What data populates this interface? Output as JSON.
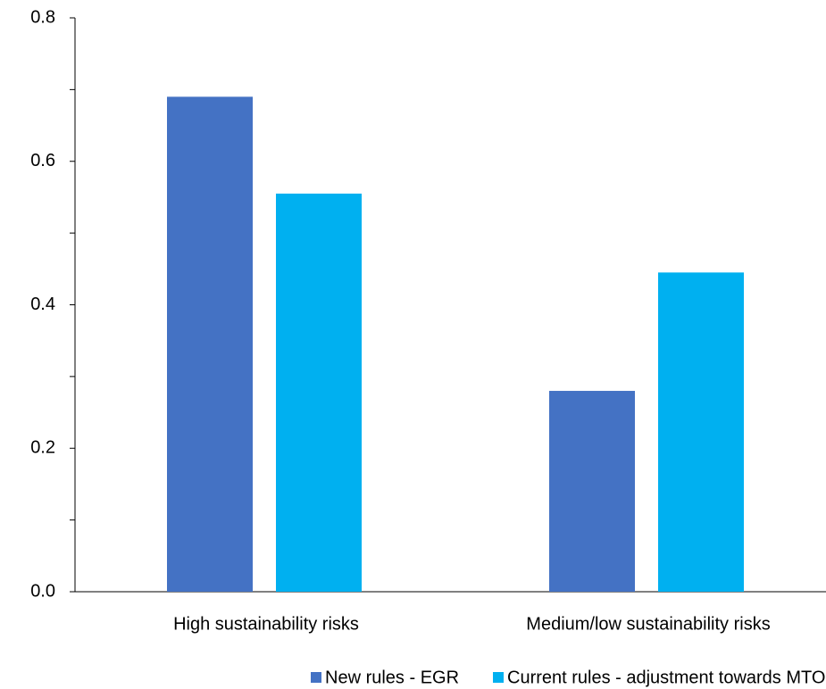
{
  "chart_data": {
    "type": "bar",
    "categories": [
      "High sustainability risks",
      "Medium/low sustainability risks"
    ],
    "series": [
      {
        "name": "New rules - EGR",
        "color": "#4472c4",
        "values": [
          0.69,
          0.28
        ]
      },
      {
        "name": "Current rules - adjustment towards MTO",
        "color": "#00b0f0",
        "values": [
          0.555,
          0.445
        ]
      }
    ],
    "ylim": [
      0,
      0.8
    ],
    "yticks": [
      {
        "value": 0,
        "label": "0.0"
      },
      0.2,
      0.4,
      0.6,
      0.8
    ],
    "minor_yticks": [
      0.1,
      0.3,
      0.5,
      0.7
    ],
    "grid": false,
    "legend": "bottom"
  }
}
